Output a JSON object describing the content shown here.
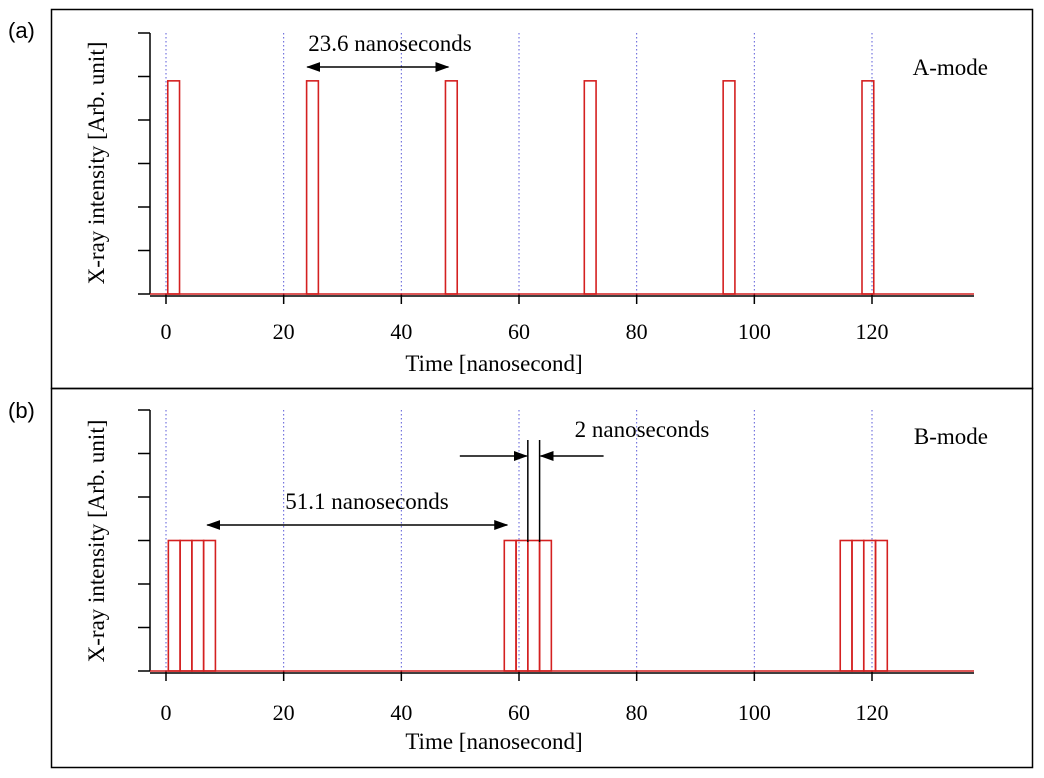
{
  "figure_caption": "",
  "chart_data": [
    {
      "panel": "(a)",
      "type": "line",
      "mode_label": "A-mode",
      "xlabel": "Time [nanosecond]",
      "ylabel": "X-ray intensity [Arb. unit]",
      "xlim": [
        -2,
        137.5
      ],
      "ylim": [
        0,
        6
      ],
      "x_ticks": [
        0,
        20,
        40,
        60,
        80,
        100,
        120
      ],
      "y_tick_count": 7,
      "grid": "vertical dotted at x ticks",
      "series": [
        {
          "name": "pulses",
          "color": "#d42020",
          "pulse_width": 2,
          "pulse_height": 4.9,
          "pulse_starts": [
            0.3,
            23.9,
            47.5,
            71.1,
            94.7,
            118.3
          ]
        }
      ],
      "annotations": [
        {
          "text": "23.6 nanoseconds",
          "arrow_from": 24,
          "arrow_to": 48
        }
      ]
    },
    {
      "panel": "(b)",
      "type": "line",
      "mode_label": "B-mode",
      "xlabel": "Time [nanosecond]",
      "ylabel": "X-ray intensity [Arb. unit]",
      "xlim": [
        -2,
        137.5
      ],
      "ylim": [
        0,
        6
      ],
      "x_ticks": [
        0,
        20,
        40,
        60,
        80,
        100,
        120
      ],
      "y_tick_count": 7,
      "grid": "vertical dotted at x ticks",
      "series": [
        {
          "name": "pulse trains",
          "color": "#d42020",
          "pulse_width": 2,
          "pulse_height": 3.0,
          "pulse_starts": [
            0.4,
            2.4,
            4.4,
            6.4,
            57.5,
            59.5,
            61.5,
            63.5,
            114.6,
            116.6,
            118.6,
            120.6
          ]
        }
      ],
      "annotations": [
        {
          "text": "51.1 nanoseconds",
          "arrow_from": 7,
          "arrow_to": 58
        },
        {
          "text": "2 nanoseconds",
          "marker_left": 61.5,
          "marker_right": 63.5
        }
      ]
    }
  ]
}
